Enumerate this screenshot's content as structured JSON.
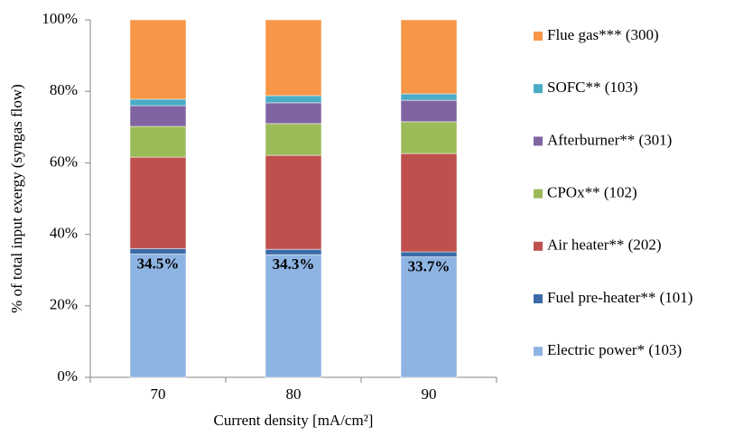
{
  "chart_data": {
    "type": "stacked_bar",
    "y_label": "% of total input exergy (syngas flow)",
    "x_label": "Current density [mA/cm²]",
    "categories": [
      "70",
      "80",
      "90"
    ],
    "series": [
      {
        "name": "Electric power* (103)",
        "color": "#8eb4e3",
        "values": [
          34.5,
          34.3,
          33.7
        ],
        "value_labels": [
          "34.5%",
          "34.3%",
          "33.7%"
        ]
      },
      {
        "name": "Fuel pre-heater** (101)",
        "color": "#3a6aa8",
        "values": [
          1.5,
          1.5,
          1.4
        ]
      },
      {
        "name": "Air heater** (202)",
        "color": "#c0504d",
        "values": [
          25.6,
          26.3,
          27.5
        ]
      },
      {
        "name": "CPOx** (102)",
        "color": "#9bbb59",
        "values": [
          8.6,
          8.9,
          8.9
        ]
      },
      {
        "name": "Afterburner** (301)",
        "color": "#8064a2",
        "values": [
          5.8,
          5.8,
          6.0
        ]
      },
      {
        "name": "SOFC** (103)",
        "color": "#4bacc6",
        "values": [
          1.8,
          2.0,
          1.8
        ]
      },
      {
        "name": "Flue gas*** (300)",
        "color": "#f79646",
        "values": [
          22.2,
          21.2,
          20.7
        ]
      }
    ],
    "ylim": [
      0,
      100
    ],
    "yticks": [
      {
        "value": 0,
        "label": "0%"
      },
      {
        "value": 20,
        "label": "20%"
      },
      {
        "value": 40,
        "label": "40%"
      },
      {
        "value": 60,
        "label": "60%"
      },
      {
        "value": 80,
        "label": "80%"
      },
      {
        "value": 100,
        "label": "100%"
      }
    ],
    "legend": "right"
  }
}
